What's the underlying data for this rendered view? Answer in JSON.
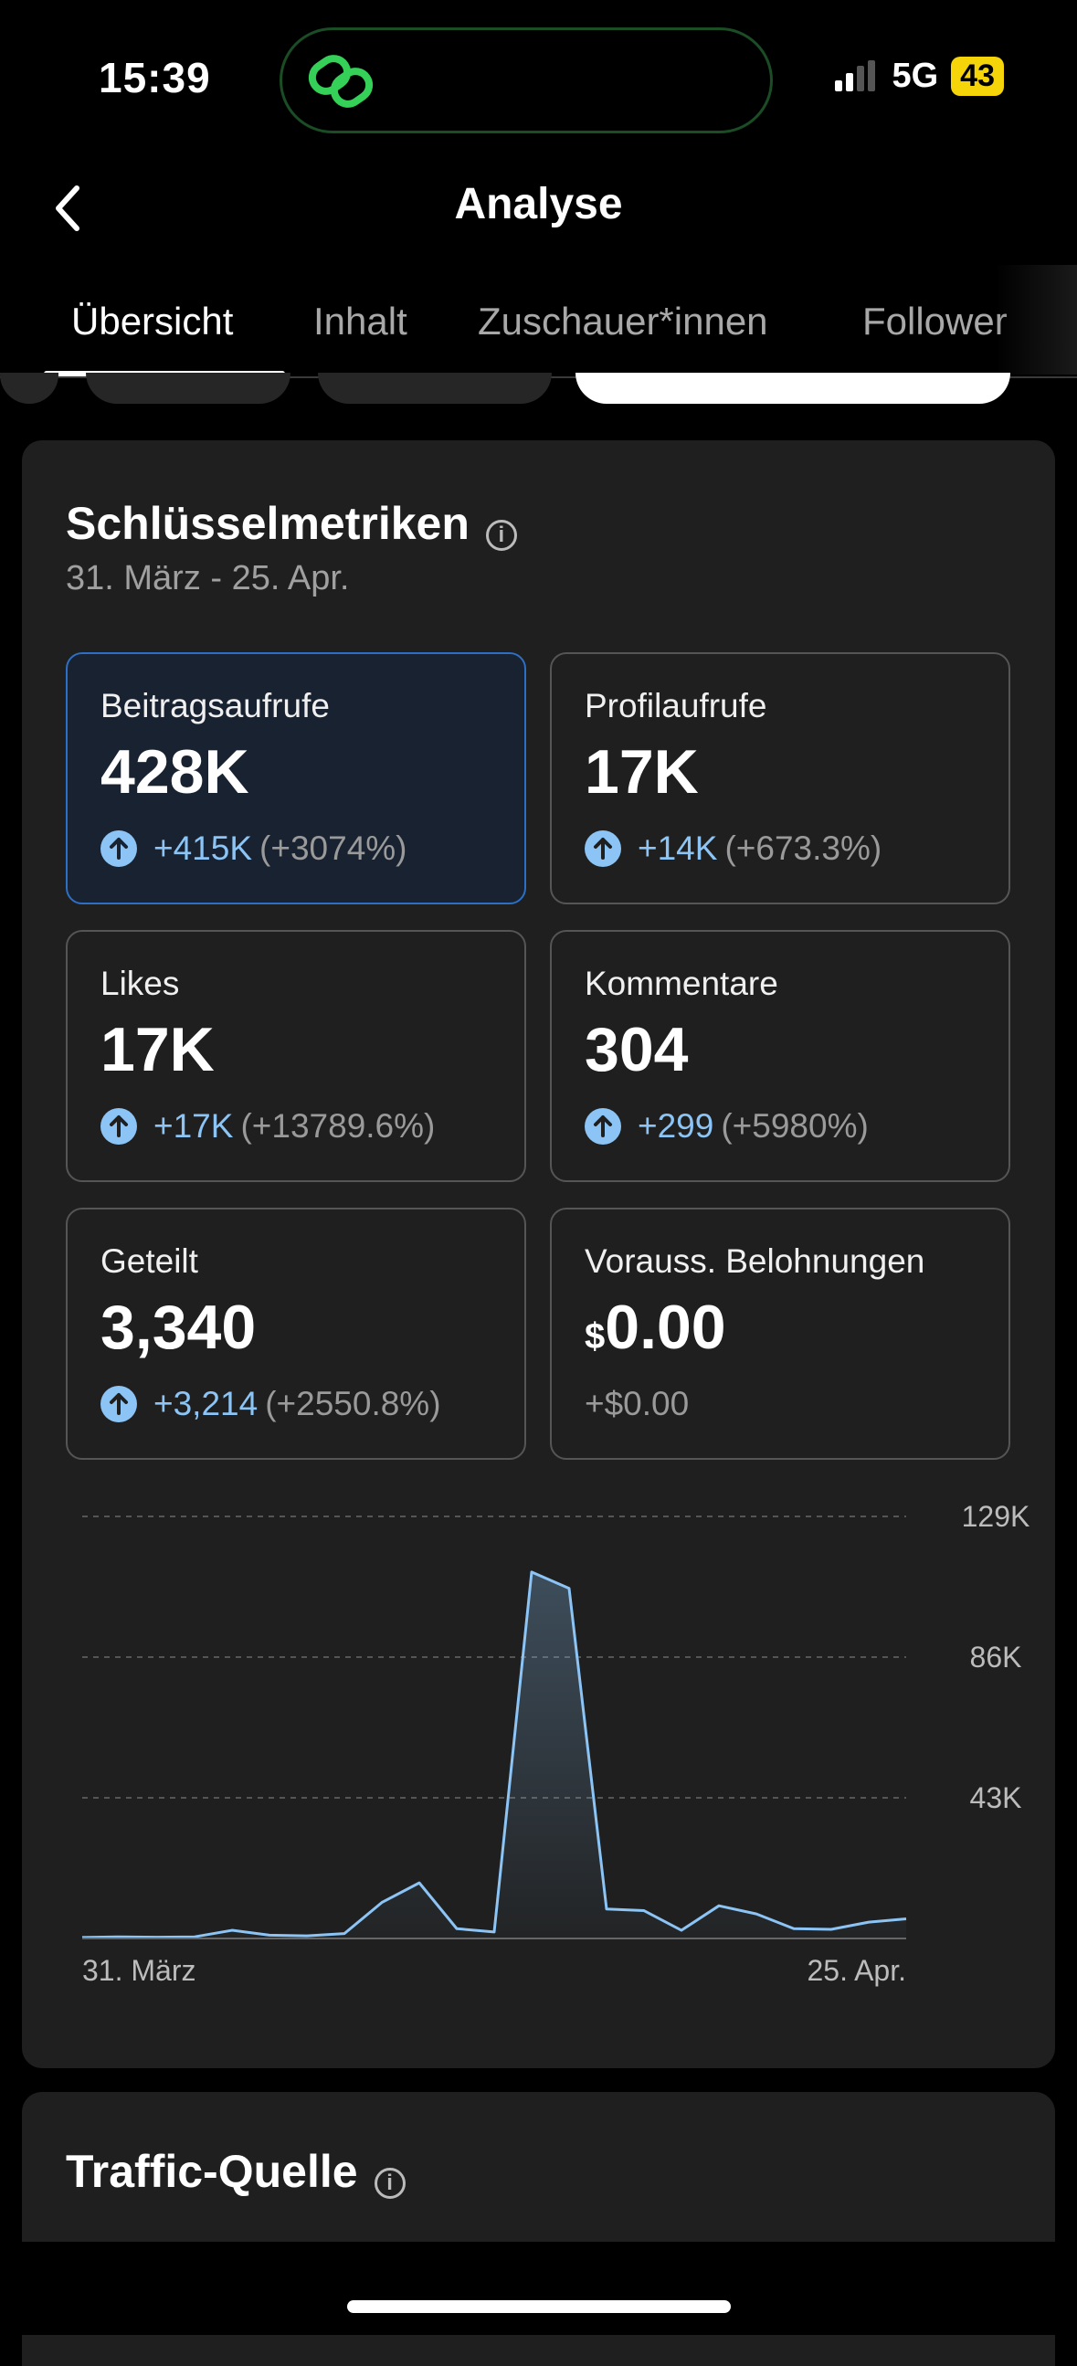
{
  "status": {
    "time": "15:39",
    "network": "5G",
    "battery": "43"
  },
  "header": {
    "title": "Analyse"
  },
  "tabs": [
    {
      "label": "Übersicht",
      "active": true
    },
    {
      "label": "Inhalt",
      "active": false
    },
    {
      "label": "Zuschauer*innen",
      "active": false
    },
    {
      "label": "Follower",
      "active": false
    }
  ],
  "key_metrics": {
    "title": "Schlüsselmetriken",
    "date_range": "31. März - 25. Apr.",
    "cards": [
      {
        "label": "Beitragsaufrufe",
        "value": "428K",
        "delta": "+415K",
        "pct": "(+3074%)",
        "selected": true
      },
      {
        "label": "Profilaufrufe",
        "value": "17K",
        "delta": "+14K",
        "pct": "(+673.3%)",
        "selected": false
      },
      {
        "label": "Likes",
        "value": "17K",
        "delta": "+17K",
        "pct": "(+13789.6%)",
        "selected": false
      },
      {
        "label": "Kommentare",
        "value": "304",
        "delta": "+299",
        "pct": "(+5980%)",
        "selected": false
      },
      {
        "label": "Geteilt",
        "value": "3,340",
        "delta": "+3,214",
        "pct": "(+2550.8%)",
        "selected": false
      },
      {
        "label": "Vorauss. Belohnungen",
        "currency": "$",
        "value": "0.00",
        "delta": "+$0.00",
        "selected": false
      }
    ]
  },
  "chart_data": {
    "type": "area",
    "x_labels": [
      "31. März",
      "25. Apr."
    ],
    "y_ticks": [
      "43K",
      "86K",
      "129K"
    ],
    "ylim": [
      0,
      129000
    ],
    "grid": true,
    "series": [
      {
        "values": [
          300,
          500,
          400,
          500,
          2500,
          1000,
          800,
          1500,
          11000,
          17000,
          3000,
          2000,
          112000,
          107000,
          9000,
          8500,
          2500,
          10000,
          7500,
          3000,
          2800,
          5000,
          6000
        ]
      }
    ]
  },
  "traffic": {
    "title": "Traffic-Quelle"
  },
  "colors": {
    "accent": "#8cc4f5",
    "selected_border": "#2d6fc4",
    "battery": "#f5d40a"
  }
}
